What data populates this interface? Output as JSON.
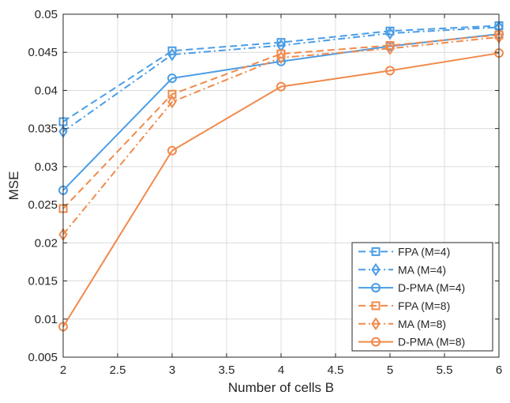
{
  "chart_data": {
    "type": "line",
    "title": "",
    "xlabel": "Number of cells B",
    "ylabel": "MSE",
    "xlim": [
      2,
      6
    ],
    "ylim": [
      0.005,
      0.05
    ],
    "x_ticks": [
      2,
      2.5,
      3,
      3.5,
      4,
      4.5,
      5,
      5.5,
      6
    ],
    "x_tick_labels": [
      "2",
      "2.5",
      "3",
      "3.5",
      "4",
      "4.5",
      "5",
      "5.5",
      "6"
    ],
    "y_ticks": [
      0.005,
      0.01,
      0.015,
      0.02,
      0.025,
      0.03,
      0.035,
      0.04,
      0.045,
      0.05
    ],
    "y_tick_labels": [
      "0.005",
      "0.01",
      "0.015",
      "0.02",
      "0.025",
      "0.03",
      "0.035",
      "0.04",
      "0.045",
      "0.05"
    ],
    "grid": true,
    "legend_position": "bottom-right",
    "x": [
      2,
      3,
      4,
      5,
      6
    ],
    "series": [
      {
        "name": "FPA (M=4)",
        "color": "#4a9de6",
        "dash": "dashed",
        "marker": "square",
        "values": [
          0.0359,
          0.0452,
          0.0463,
          0.0478,
          0.0485
        ]
      },
      {
        "name": "MA (M=4)",
        "color": "#4a9de6",
        "dash": "dashdot",
        "marker": "diamond",
        "values": [
          0.0346,
          0.0447,
          0.0459,
          0.0475,
          0.0483
        ]
      },
      {
        "name": "D-PMA (M=4)",
        "color": "#4a9de6",
        "dash": "solid",
        "marker": "circle",
        "values": [
          0.0269,
          0.0416,
          0.0438,
          0.0458,
          0.0474
        ]
      },
      {
        "name": "FPA (M=8)",
        "color": "#f08a4b",
        "dash": "dashed",
        "marker": "square",
        "values": [
          0.0245,
          0.0395,
          0.0448,
          0.0459,
          0.0473
        ]
      },
      {
        "name": "MA (M=8)",
        "color": "#f08a4b",
        "dash": "dashdot",
        "marker": "diamond",
        "values": [
          0.0211,
          0.0385,
          0.0443,
          0.0455,
          0.047
        ]
      },
      {
        "name": "D-PMA (M=8)",
        "color": "#f08a4b",
        "dash": "solid",
        "marker": "circle",
        "values": [
          0.009,
          0.0321,
          0.0405,
          0.0426,
          0.0449
        ]
      }
    ]
  }
}
